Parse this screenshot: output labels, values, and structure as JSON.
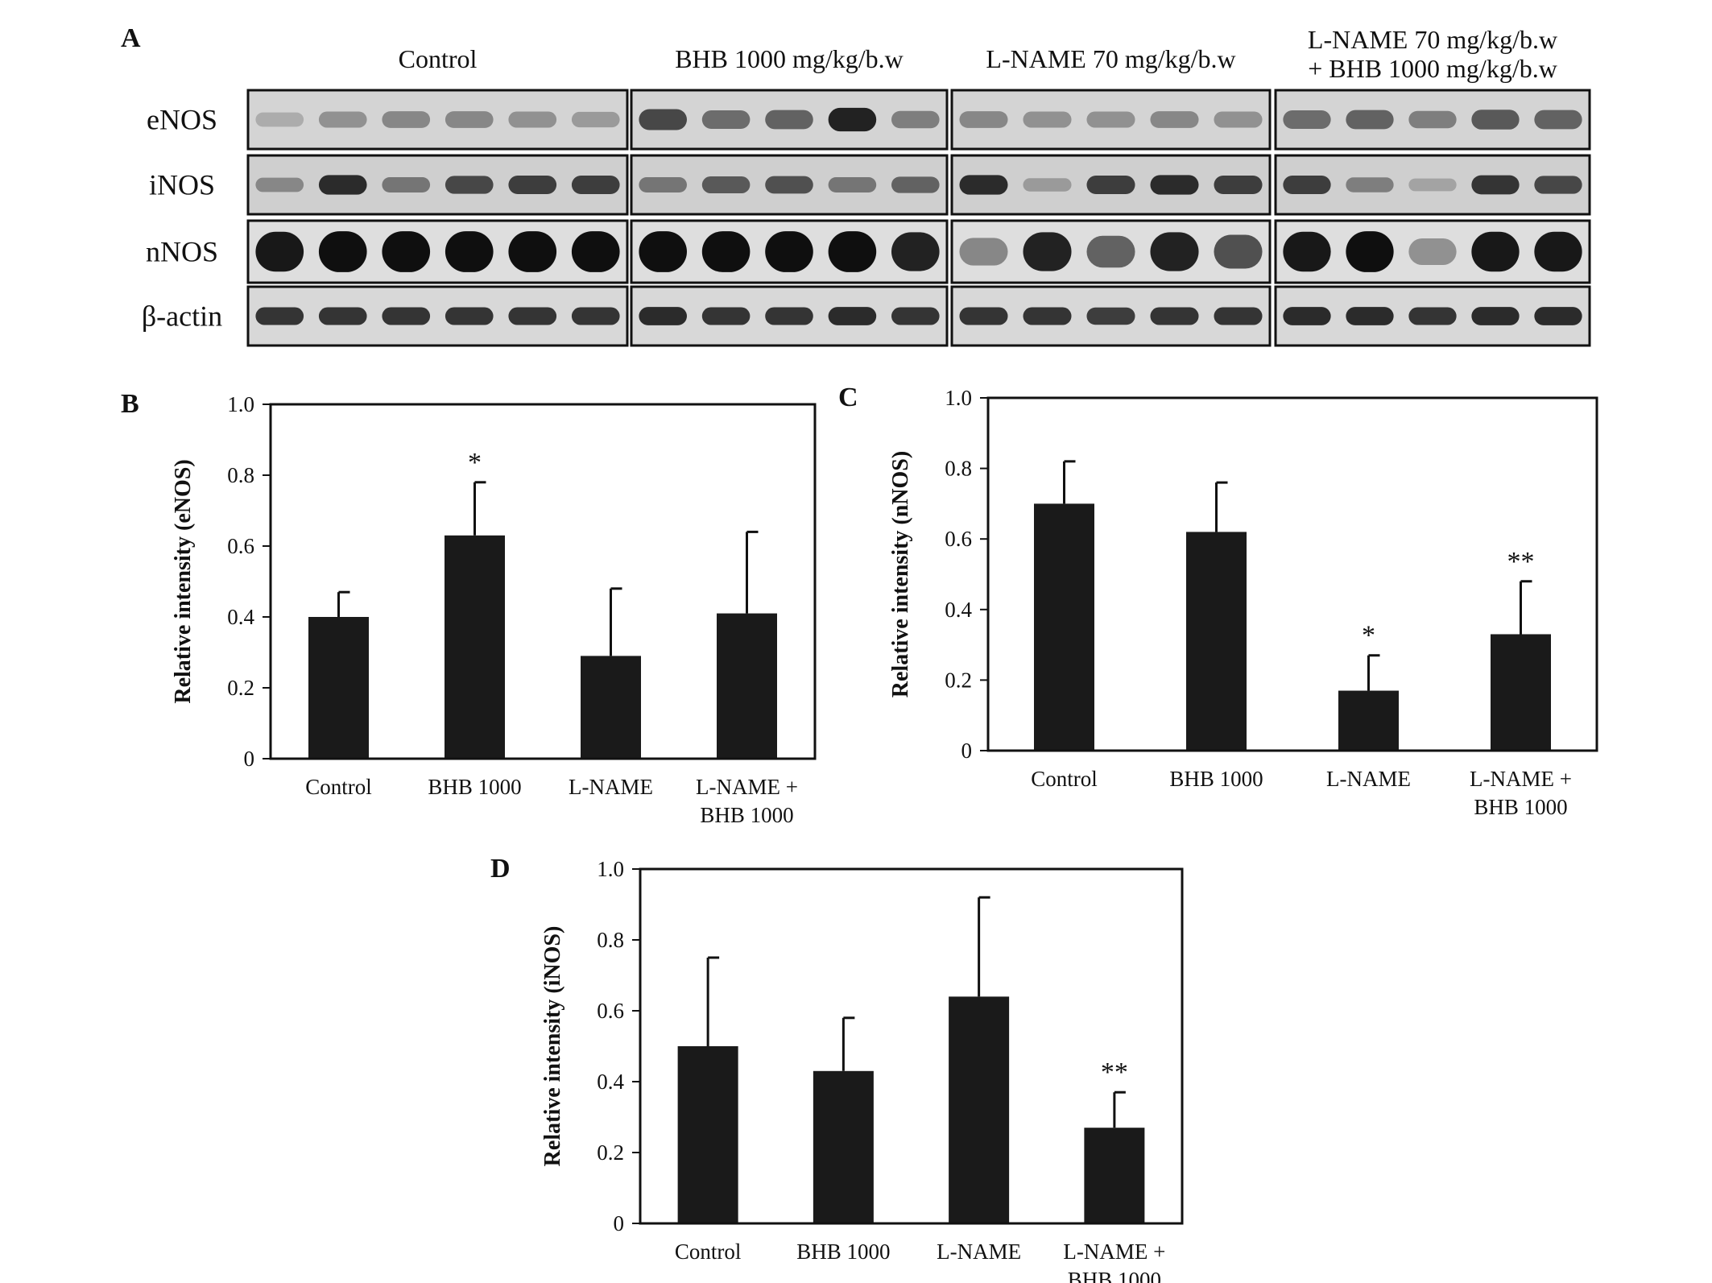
{
  "blot": {
    "panel": "A",
    "groups": [
      "Control",
      "BHB 1000 mg/kg/b.w",
      "L-NAME 70 mg/kg/b.w",
      "L-NAME 70 mg/kg/b.w\n+ BHB 1000 mg/kg/b.w"
    ],
    "rows": [
      "eNOS",
      "iNOS",
      "nNOS",
      "β-actin"
    ]
  },
  "chart_data": [
    {
      "type": "bar",
      "panel": "B",
      "ylabel": "Relative intensity (eNOS)",
      "categories": [
        "Control",
        "BHB 1000",
        "L-NAME",
        "L-NAME +\nBHB 1000"
      ],
      "values": [
        0.4,
        0.63,
        0.29,
        0.41
      ],
      "errors": [
        0.07,
        0.15,
        0.19,
        0.23
      ],
      "annotations": [
        null,
        "*",
        null,
        null
      ],
      "color": "#1a1a1a",
      "ylim": [
        0,
        1
      ],
      "yticks": [
        0,
        0.2,
        0.4,
        0.6,
        0.8,
        {
          "value": 1,
          "label": "1.0"
        }
      ]
    },
    {
      "type": "bar",
      "panel": "C",
      "ylabel": "Relative intensity (nNOS)",
      "categories": [
        "Control",
        "BHB 1000",
        "L-NAME",
        "L-NAME +\nBHB 1000"
      ],
      "values": [
        0.7,
        0.62,
        0.17,
        0.33
      ],
      "errors": [
        0.12,
        0.14,
        0.1,
        0.15
      ],
      "annotations": [
        null,
        null,
        "*",
        "**"
      ],
      "color": "#1a1a1a",
      "ylim": [
        0,
        1
      ],
      "yticks": [
        0,
        0.2,
        0.4,
        0.6,
        0.8,
        {
          "value": 1,
          "label": "1.0"
        }
      ]
    },
    {
      "type": "bar",
      "panel": "D",
      "ylabel": "Relative intensity (iNOS)",
      "categories": [
        "Control",
        "BHB 1000",
        "L-NAME",
        "L-NAME +\nBHB 1000"
      ],
      "values": [
        0.5,
        0.43,
        0.64,
        0.27
      ],
      "errors": [
        0.25,
        0.15,
        0.28,
        0.1
      ],
      "annotations": [
        null,
        null,
        null,
        "**"
      ],
      "color": "#1a1a1a",
      "ylim": [
        0,
        1
      ],
      "yticks": [
        0,
        0.2,
        0.4,
        0.6,
        0.8,
        {
          "value": 1,
          "label": "1.0"
        }
      ]
    }
  ]
}
